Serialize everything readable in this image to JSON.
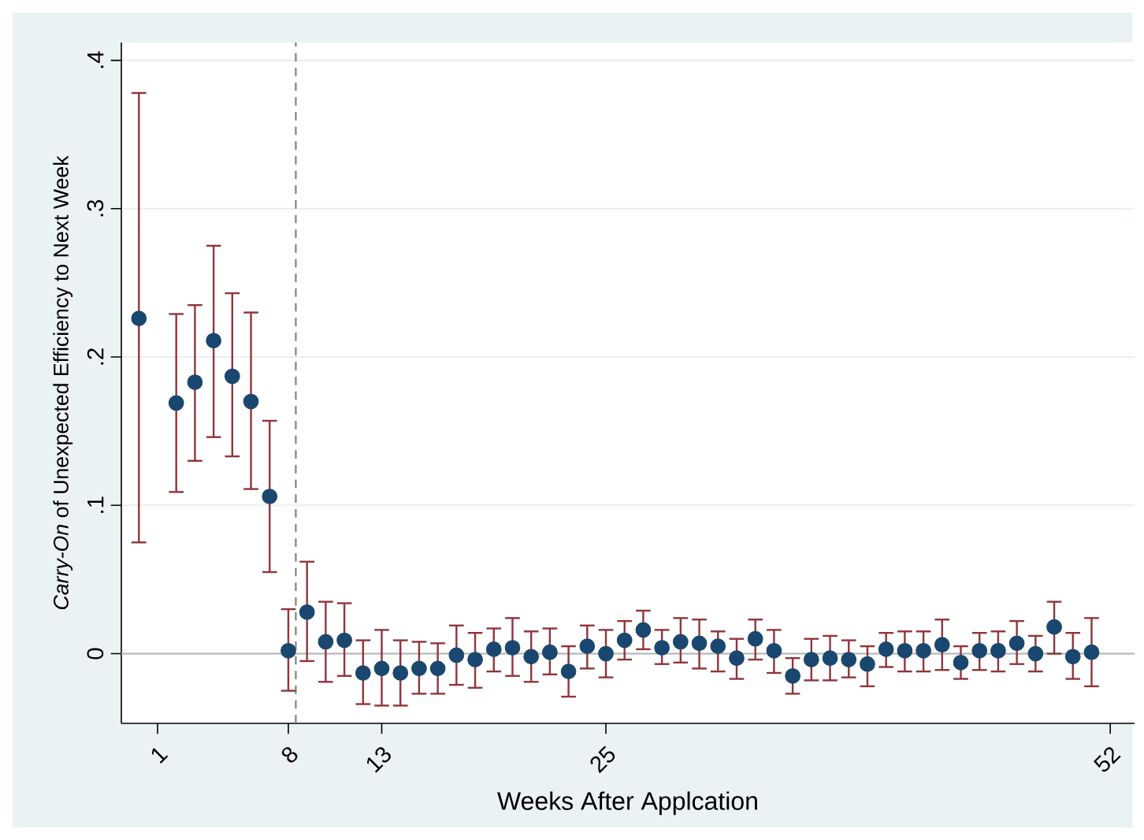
{
  "chart_data": {
    "type": "scatter",
    "xlabel": "Weeks After Applcation",
    "ylabel": "*Carry-On* of Unexpected Efficiency to Next Week",
    "x": [
      0,
      2,
      3,
      4,
      5,
      6,
      7,
      8,
      9,
      10,
      11,
      12,
      13,
      14,
      15,
      16,
      17,
      18,
      19,
      20,
      21,
      22,
      23,
      24,
      25,
      26,
      27,
      28,
      29,
      30,
      31,
      32,
      33,
      34,
      35,
      36,
      37,
      38,
      39,
      40,
      41,
      42,
      43,
      44,
      45,
      46,
      47,
      48,
      49,
      50,
      51
    ],
    "values": [
      0.226,
      0.169,
      0.183,
      0.211,
      0.187,
      0.17,
      0.106,
      0.002,
      0.028,
      0.008,
      0.009,
      -0.013,
      -0.01,
      -0.013,
      -0.01,
      -0.01,
      -0.001,
      -0.004,
      0.003,
      0.004,
      -0.002,
      0.001,
      -0.012,
      0.005,
      0.0,
      0.009,
      0.016,
      0.004,
      0.008,
      0.007,
      0.005,
      -0.003,
      0.01,
      0.002,
      -0.015,
      -0.004,
      -0.003,
      -0.004,
      -0.007,
      0.003,
      0.002,
      0.002,
      0.006,
      -0.006,
      0.002,
      0.002,
      0.007,
      0.0,
      0.018,
      -0.002,
      0.001
    ],
    "errors": [
      [
        0.075,
        0.378
      ],
      [
        0.109,
        0.229
      ],
      [
        0.13,
        0.235
      ],
      [
        0.146,
        0.275
      ],
      [
        0.133,
        0.243
      ],
      [
        0.111,
        0.23
      ],
      [
        0.055,
        0.157
      ],
      [
        -0.025,
        0.03
      ],
      [
        -0.005,
        0.062
      ],
      [
        -0.019,
        0.035
      ],
      [
        -0.015,
        0.034
      ],
      [
        -0.034,
        0.009
      ],
      [
        -0.035,
        0.016
      ],
      [
        -0.035,
        0.009
      ],
      [
        -0.027,
        0.008
      ],
      [
        -0.027,
        0.007
      ],
      [
        -0.021,
        0.019
      ],
      [
        -0.023,
        0.014
      ],
      [
        -0.012,
        0.017
      ],
      [
        -0.015,
        0.024
      ],
      [
        -0.019,
        0.015
      ],
      [
        -0.014,
        0.017
      ],
      [
        -0.029,
        0.005
      ],
      [
        -0.01,
        0.019
      ],
      [
        -0.016,
        0.016
      ],
      [
        -0.004,
        0.022
      ],
      [
        0.003,
        0.029
      ],
      [
        -0.007,
        0.016
      ],
      [
        -0.006,
        0.024
      ],
      [
        -0.01,
        0.023
      ],
      [
        -0.012,
        0.015
      ],
      [
        -0.017,
        0.01
      ],
      [
        -0.004,
        0.023
      ],
      [
        -0.013,
        0.016
      ],
      [
        -0.027,
        -0.003
      ],
      [
        -0.018,
        0.01
      ],
      [
        -0.018,
        0.012
      ],
      [
        -0.016,
        0.009
      ],
      [
        -0.022,
        0.005
      ],
      [
        -0.009,
        0.014
      ],
      [
        -0.012,
        0.015
      ],
      [
        -0.012,
        0.015
      ],
      [
        -0.011,
        0.023
      ],
      [
        -0.017,
        0.005
      ],
      [
        -0.011,
        0.014
      ],
      [
        -0.012,
        0.015
      ],
      [
        -0.007,
        0.022
      ],
      [
        -0.012,
        0.012
      ],
      [
        0.0,
        0.035
      ],
      [
        -0.017,
        0.014
      ],
      [
        -0.022,
        0.024
      ]
    ],
    "color": "#1a476f",
    "marker": "circle",
    "xlim": [
      -0.94,
      53.3
    ],
    "xticks": [
      1,
      8,
      13,
      25,
      52
    ],
    "ylim": [
      -0.047,
      0.412
    ],
    "yticks": [
      0,
      {
        "value": 0.1,
        "label": ".1"
      },
      {
        "value": 0.2,
        "label": ".2"
      },
      {
        "value": 0.3,
        "label": ".3"
      },
      {
        "value": 0.4,
        "label": ".4"
      }
    ],
    "grid": "y",
    "ref_lines": [
      {
        "axis": "y",
        "value": 0,
        "color": "#b4b4b4"
      },
      {
        "axis": "x",
        "value": 8.4,
        "color": "#7f7f7f",
        "line_style": "dashed"
      }
    ]
  }
}
